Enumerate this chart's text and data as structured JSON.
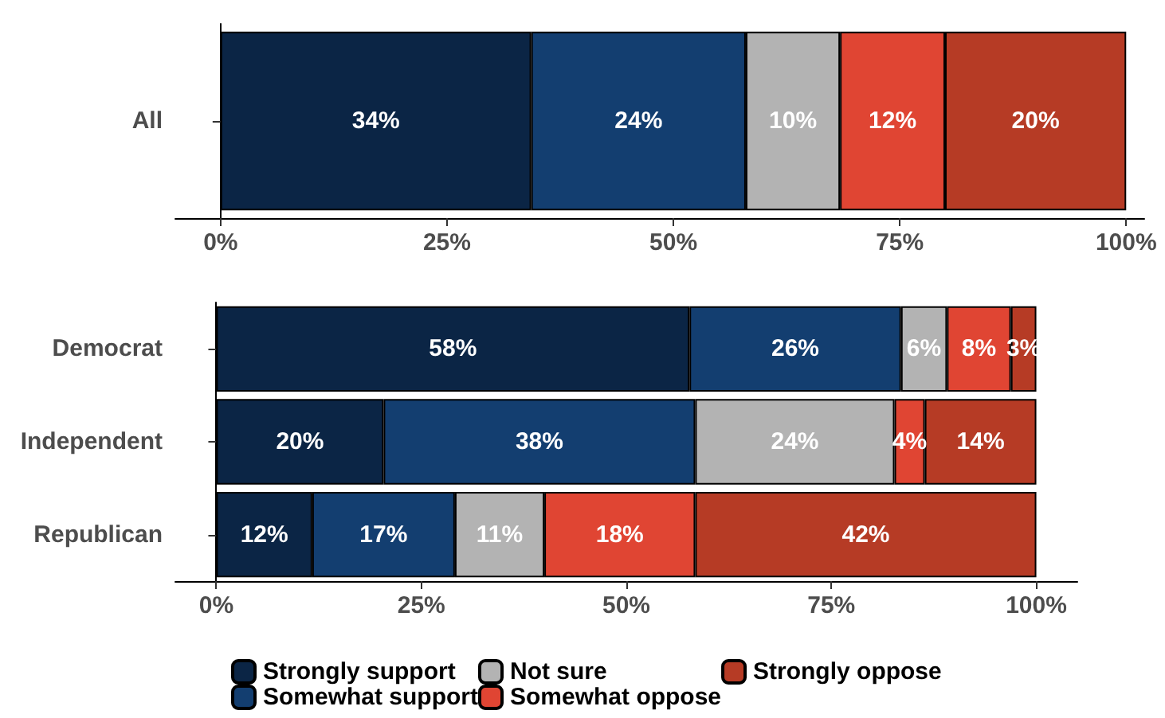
{
  "chart_data": [
    {
      "type": "bar",
      "orientation": "horizontal",
      "stacked": true,
      "categories": [
        "All"
      ],
      "xlim": [
        -5,
        102
      ],
      "xticks": [
        {
          "value": 0,
          "label": "0%"
        },
        {
          "value": 25,
          "label": "25%"
        },
        {
          "value": 50,
          "label": "50%"
        },
        {
          "value": 75,
          "label": "75%"
        },
        {
          "value": 100,
          "label": "100%"
        }
      ],
      "grid": false,
      "legend": false,
      "series": [
        {
          "color": "#0b2545",
          "values": [
            34.3
          ],
          "value_labels": [
            "34%"
          ]
        },
        {
          "color": "#133e70",
          "values": [
            23.7
          ],
          "value_labels": [
            "24%"
          ]
        },
        {
          "color": "#b3b3b3",
          "values": [
            10.4
          ],
          "value_labels": [
            "10%"
          ]
        },
        {
          "color": "#e04533",
          "values": [
            11.6
          ],
          "value_labels": [
            "12%"
          ]
        },
        {
          "color": "#b63b25",
          "values": [
            20.0
          ],
          "value_labels": [
            "20%"
          ]
        }
      ]
    },
    {
      "type": "bar",
      "orientation": "horizontal",
      "stacked": true,
      "categories": [
        "Democrat",
        "Independent",
        "Republican"
      ],
      "xlim": [
        -5,
        105
      ],
      "xticks": [
        {
          "value": 0,
          "label": "0%"
        },
        {
          "value": 25,
          "label": "25%"
        },
        {
          "value": 50,
          "label": "50%"
        },
        {
          "value": 75,
          "label": "75%"
        },
        {
          "value": 100,
          "label": "100%"
        }
      ],
      "grid": false,
      "legend": "bottom",
      "series": [
        {
          "name": "Strongly support",
          "color": "#0b2545",
          "values": [
            57.7,
            20.4,
            11.7
          ],
          "value_labels": [
            "58%",
            "20%",
            "12%"
          ]
        },
        {
          "name": "Somewhat support",
          "color": "#133e70",
          "values": [
            25.8,
            38.0,
            17.4
          ],
          "value_labels": [
            "26%",
            "38%",
            "17%"
          ]
        },
        {
          "name": "Not sure",
          "color": "#b3b3b3",
          "values": [
            5.6,
            24.3,
            10.9
          ],
          "value_labels": [
            "6%",
            "24%",
            "11%"
          ]
        },
        {
          "name": "Somewhat oppose",
          "color": "#e04533",
          "values": [
            7.8,
            3.7,
            18.4
          ],
          "value_labels": [
            "8%",
            "4%",
            "18%"
          ]
        },
        {
          "name": "Strongly oppose",
          "color": "#b63b25",
          "values": [
            3.1,
            13.6,
            41.6
          ],
          "value_labels": [
            "3%",
            "14%",
            "42%"
          ]
        }
      ]
    }
  ]
}
